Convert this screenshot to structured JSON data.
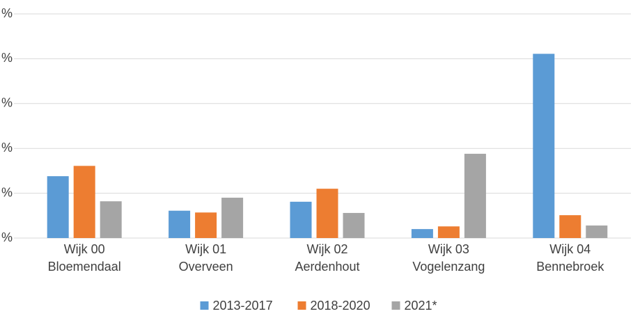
{
  "chart_data": {
    "type": "bar",
    "categories": [
      [
        "Wijk 00",
        "Bloemendaal"
      ],
      [
        "Wijk 01",
        "Overveen"
      ],
      [
        "Wijk 02",
        "Aerdenhout"
      ],
      [
        "Wijk 03",
        "Vogelenzang"
      ],
      [
        "Wijk 04",
        "Bennebroek"
      ]
    ],
    "series": [
      {
        "name": "2013-2017",
        "color": "#5b9bd5",
        "values": [
          1.38,
          0.61,
          0.81,
          0.2,
          4.11
        ]
      },
      {
        "name": "2018-2020",
        "color": "#ed7d31",
        "values": [
          1.61,
          0.57,
          1.1,
          0.26,
          0.51
        ]
      },
      {
        "name": "2021*",
        "color": "#a5a5a5",
        "values": [
          0.82,
          0.9,
          0.56,
          1.88,
          0.28
        ]
      }
    ],
    "ylim": [
      0,
      5
    ],
    "yticks": [
      {
        "value": 0,
        "label": "%"
      },
      {
        "value": 1,
        "label": "%"
      },
      {
        "value": 2,
        "label": "%"
      },
      {
        "value": 3,
        "label": "%"
      },
      {
        "value": 4,
        "label": "%"
      },
      {
        "value": 5,
        "label": "%"
      }
    ],
    "grid": true,
    "legend": "bottom"
  }
}
